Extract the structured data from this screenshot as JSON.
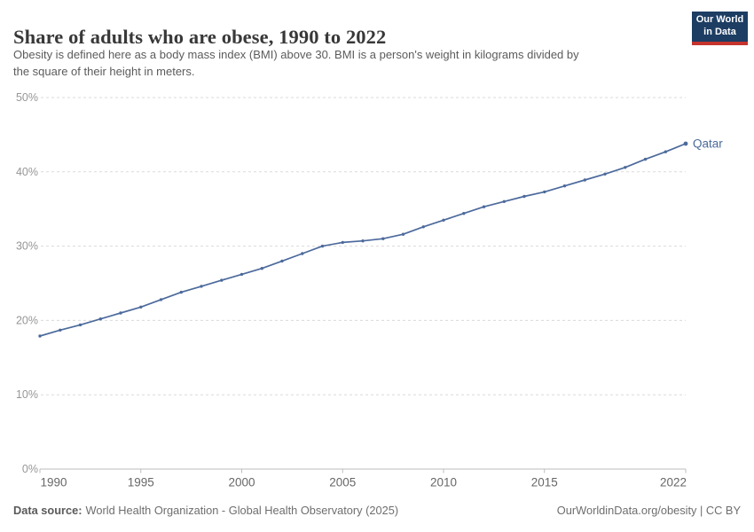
{
  "header": {
    "title": "Share of adults who are obese, 1990 to 2022",
    "subtitle_line1": "Obesity is defined here as a body mass index (BMI) above 30. BMI is a person's weight in kilograms divided by",
    "subtitle_line2": "the square of their height in meters."
  },
  "logo": {
    "line1": "Our World",
    "line2": "in Data",
    "bg_color": "#1d3d63",
    "bar_color": "#c5332d"
  },
  "chart_data": {
    "type": "line",
    "title": "Share of adults who are obese, 1990 to 2022",
    "entity": "Qatar",
    "unit": "%",
    "x": [
      1990,
      1991,
      1992,
      1993,
      1994,
      1995,
      1996,
      1997,
      1998,
      1999,
      2000,
      2001,
      2002,
      2003,
      2004,
      2005,
      2006,
      2007,
      2008,
      2009,
      2010,
      2011,
      2012,
      2013,
      2014,
      2015,
      2016,
      2017,
      2018,
      2019,
      2020,
      2021,
      2022
    ],
    "series": [
      {
        "name": "Qatar",
        "color": "#4c6a9c",
        "values": [
          17.9,
          18.7,
          19.4,
          20.2,
          21.0,
          21.8,
          22.8,
          23.8,
          24.6,
          25.4,
          26.2,
          27.0,
          28.0,
          29.0,
          30.0,
          30.5,
          30.7,
          31.0,
          31.6,
          32.6,
          33.5,
          34.4,
          35.3,
          36.0,
          36.7,
          37.3,
          38.1,
          38.9,
          39.7,
          40.6,
          41.7,
          42.7,
          43.8
        ]
      }
    ],
    "xlabel": "",
    "ylabel": "",
    "xlim": [
      1990,
      2022
    ],
    "ylim": [
      0,
      50
    ],
    "yticks": [
      0,
      10,
      20,
      30,
      40,
      50
    ],
    "ytick_labels": [
      "0%",
      "10%",
      "20%",
      "30%",
      "40%",
      "50%"
    ],
    "xticks": [
      1990,
      1995,
      2000,
      2005,
      2010,
      2015,
      2022
    ],
    "grid": "horizontal-dashed",
    "legend_position": "end-of-line label",
    "end_label": "Qatar"
  },
  "footer": {
    "source_label": "Data source:",
    "source_text": "World Health Organization - Global Health Observatory (2025)",
    "link_text": "OurWorldinData.org/obesity | CC BY"
  },
  "colors": {
    "line": "#4c6a9c",
    "grid": "#dadada",
    "axis": "#bdbdbd",
    "ytick_text": "#969696",
    "xtick_text": "#676767",
    "title_text": "#383838",
    "subtitle_text": "#5b5b5b"
  }
}
